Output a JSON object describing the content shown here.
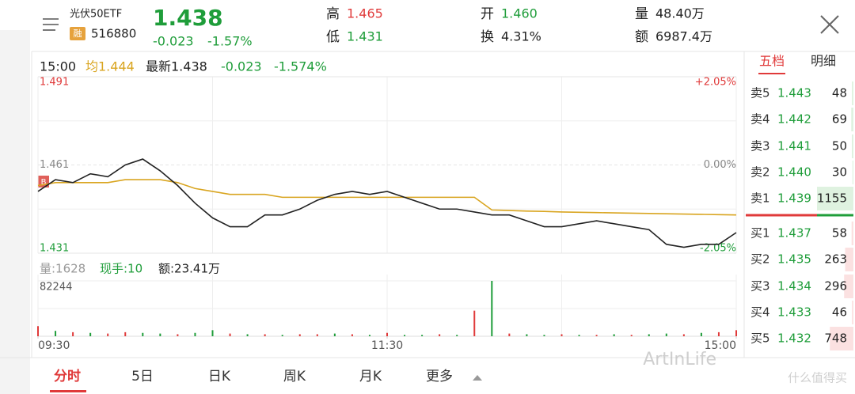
{
  "header": {
    "name": "光伏50ETF",
    "tag": "融",
    "code": "516880",
    "price": "1.438",
    "change": "-0.023",
    "change_pct": "-1.57%",
    "stats": [
      {
        "label": "高",
        "value": "1.465",
        "tone": "up"
      },
      {
        "label": "低",
        "value": "1.431",
        "tone": "down"
      },
      {
        "label": "开",
        "value": "1.460",
        "tone": "down"
      },
      {
        "label": "换",
        "value": "4.31%",
        "tone": "flat"
      },
      {
        "label": "量",
        "value": "48.40万",
        "tone": "flat"
      },
      {
        "label": "额",
        "value": "6987.4万",
        "tone": "flat"
      }
    ]
  },
  "info": {
    "time": "15:00",
    "avg": "均1.444",
    "latest": "最新1.438",
    "change": "-0.023",
    "change_pct": "-1.574%"
  },
  "volume_info": {
    "volume": "量:1628",
    "hand": "现手:10",
    "amount": "额:23.41万"
  },
  "marker": "B",
  "chart_data": {
    "type": "line",
    "x": [
      0,
      6,
      12,
      18,
      24,
      30,
      36,
      42,
      48,
      54,
      60,
      66,
      72,
      78,
      84,
      90,
      96,
      102,
      108,
      114,
      120,
      126,
      132,
      138,
      144,
      150,
      156,
      162,
      168,
      174,
      180,
      186,
      192,
      198,
      204,
      210,
      216,
      222,
      228,
      234,
      240
    ],
    "price": [
      1.452,
      1.456,
      1.455,
      1.458,
      1.457,
      1.461,
      1.463,
      1.459,
      1.454,
      1.448,
      1.443,
      1.44,
      1.44,
      1.444,
      1.444,
      1.446,
      1.449,
      1.451,
      1.452,
      1.451,
      1.452,
      1.45,
      1.448,
      1.446,
      1.446,
      1.445,
      1.444,
      1.444,
      1.442,
      1.44,
      1.44,
      1.441,
      1.442,
      1.441,
      1.44,
      1.439,
      1.434,
      1.433,
      1.434,
      1.434,
      1.438
    ],
    "average": [
      1.454,
      1.455,
      1.455,
      1.455,
      1.455,
      1.456,
      1.456,
      1.456,
      1.455,
      1.453,
      1.452,
      1.451,
      1.451,
      1.451,
      1.45,
      1.45,
      1.45,
      1.45,
      1.45,
      1.45,
      1.45,
      1.45,
      1.45,
      1.45,
      1.45,
      1.45,
      1.4457,
      1.4455,
      1.4453,
      1.4452,
      1.445,
      1.4449,
      1.4448,
      1.4447,
      1.4446,
      1.4445,
      1.4444,
      1.4443,
      1.4442,
      1.4441,
      1.444
    ],
    "volume": [
      15000,
      8000,
      6000,
      5000,
      4000,
      6000,
      5000,
      4000,
      3000,
      5000,
      9000,
      4000,
      3000,
      3000,
      2000,
      3000,
      3000,
      4000,
      3000,
      2000,
      5000,
      2000,
      2000,
      3000,
      2000,
      38000,
      82244,
      4000,
      3000,
      2000,
      3000,
      2000,
      2000,
      3000,
      2000,
      3000,
      4000,
      3000,
      5000,
      6000,
      9000
    ],
    "volume_up": [
      true,
      false,
      true,
      false,
      true,
      true,
      false,
      false,
      true,
      false,
      false,
      true,
      false,
      true,
      false,
      true,
      true,
      false,
      true,
      false,
      true,
      false,
      false,
      true,
      false,
      true,
      false,
      true,
      false,
      false,
      true,
      false,
      true,
      false,
      true,
      false,
      false,
      true,
      false,
      true,
      true
    ],
    "price_color": "#222222",
    "average_color": "#d9a520",
    "up_color": "#e03a3a",
    "down_color": "#1f9d3a",
    "xlim": [
      0,
      240
    ],
    "xticks": [
      {
        "value": 0,
        "label": "09:30"
      },
      {
        "value": 120,
        "label": "11:30"
      },
      {
        "value": 240,
        "label": "15:00"
      }
    ],
    "ylim": [
      1.431,
      1.491
    ],
    "yticks": [
      1.491,
      1.461,
      1.431
    ],
    "y2lim": [
      -2.05,
      2.05
    ],
    "y2ticks": [
      {
        "value": 2.05,
        "label": "+2.05%"
      },
      {
        "value": 0,
        "label": "0.00%"
      },
      {
        "value": -2.05,
        "label": "-2.05%"
      }
    ],
    "volume_ylim": [
      0,
      82244
    ],
    "volume_yticks": [
      82244
    ]
  },
  "tabs": [
    "分时",
    "5日",
    "日K",
    "周K",
    "月K",
    "更多"
  ],
  "order_book": {
    "tabs": [
      "五档",
      "明细"
    ],
    "asks": [
      {
        "label": "卖5",
        "price": "1.443",
        "volume": 48
      },
      {
        "label": "卖4",
        "price": "1.442",
        "volume": 69
      },
      {
        "label": "卖3",
        "price": "1.441",
        "volume": 50
      },
      {
        "label": "卖2",
        "price": "1.440",
        "volume": 30
      },
      {
        "label": "卖1",
        "price": "1.439",
        "volume": 1155
      }
    ],
    "bids": [
      {
        "label": "买1",
        "price": "1.437",
        "volume": 58
      },
      {
        "label": "买2",
        "price": "1.435",
        "volume": 263
      },
      {
        "label": "买3",
        "price": "1.434",
        "volume": 296
      },
      {
        "label": "买4",
        "price": "1.433",
        "volume": 46
      },
      {
        "label": "买5",
        "price": "1.432",
        "volume": 748
      }
    ]
  },
  "watermark": [
    "ArtInLife",
    "什么值得买"
  ]
}
